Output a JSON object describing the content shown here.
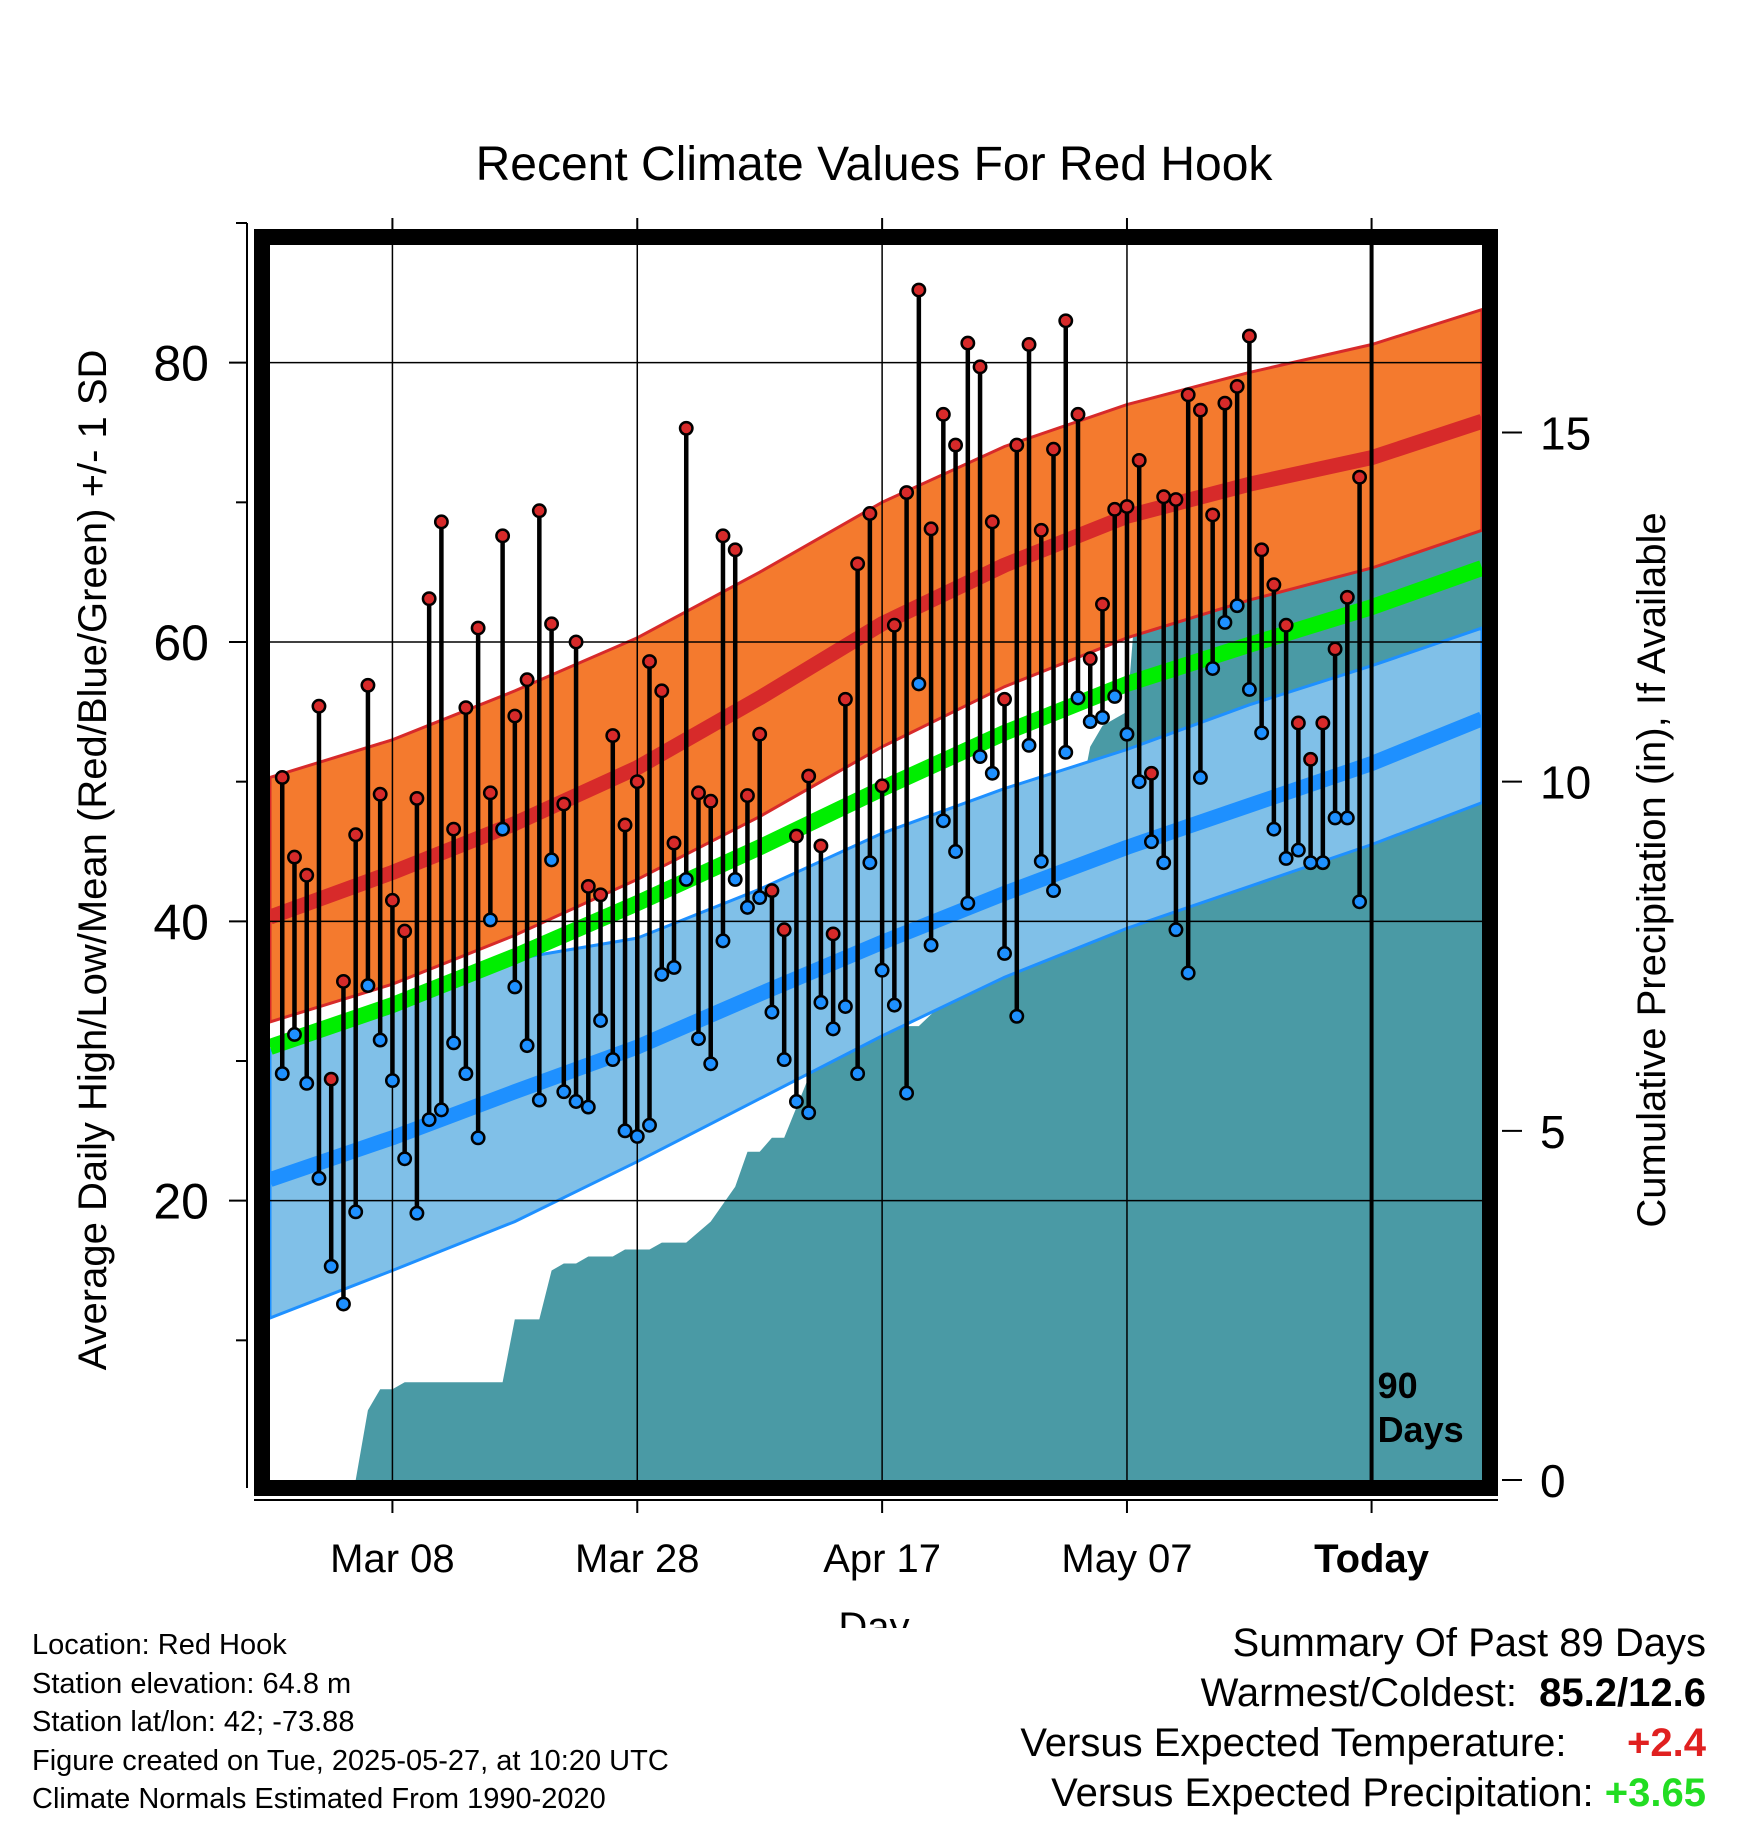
{
  "chart_data": {
    "type": "line",
    "title": "Recent Climate Values For Red Hook",
    "xlabel": "Day",
    "ylabel": "Average Daily High/Low/Mean (Red/Blue/Green) +/- 1 SD",
    "y2label": "Cumulative Precipitation (in), If Available",
    "ylim": [
      0,
      90
    ],
    "y2lim": [
      0,
      18
    ],
    "yticks": [
      "20",
      "40",
      "60",
      "80"
    ],
    "y2ticks": [
      "0",
      "5",
      "10",
      "15"
    ],
    "x_start": "Feb 26",
    "x_end": "Jun 5",
    "xticks": [
      "Mar 08",
      "Mar 28",
      "Apr 17",
      "May 07",
      "Today"
    ],
    "today_label": [
      "90",
      "Days"
    ],
    "grid": true,
    "colors": {
      "high_band": "#f47a2e",
      "high_line": "#d72a2a",
      "low_band": "#80c0e8",
      "low_line": "#1e90ff",
      "mean_line": "#00ee00",
      "precip": "#4a9aa5",
      "obs_high_point": "#d72a2a",
      "obs_low_point": "#1e90ff"
    },
    "normal_high": {
      "x": [
        "Feb 26",
        "Mar 8",
        "Mar 18",
        "Mar 28",
        "Apr 7",
        "Apr 17",
        "Apr 27",
        "May 7",
        "May 17",
        "May 27",
        "Jun 5"
      ],
      "mean": [
        40.3,
        43.5,
        47.0,
        51.0,
        56.0,
        61.3,
        65.5,
        69.0,
        71.3,
        73.2,
        75.8
      ],
      "upper": [
        50.3,
        53.0,
        56.5,
        60.3,
        65.0,
        70.0,
        74.0,
        77.0,
        79.3,
        81.3,
        83.8
      ],
      "lower": [
        32.8,
        35.5,
        39.0,
        43.0,
        47.5,
        52.5,
        56.8,
        60.3,
        63.0,
        65.3,
        68.0
      ]
    },
    "normal_mean": {
      "x": [
        "Feb 26",
        "Mar 8",
        "Mar 18",
        "Mar 28",
        "Apr 7",
        "Apr 17",
        "Apr 27",
        "May 7",
        "May 17",
        "May 27",
        "Jun 5"
      ],
      "values": [
        31.0,
        34.0,
        37.5,
        41.3,
        45.3,
        49.5,
        53.5,
        57.0,
        59.8,
        62.5,
        65.3
      ]
    },
    "normal_low": {
      "x": [
        "Feb 26",
        "Mar 8",
        "Mar 18",
        "Mar 28",
        "Apr 7",
        "Apr 17",
        "Apr 27",
        "May 7",
        "May 17",
        "May 27",
        "Jun 5"
      ],
      "mean": [
        21.5,
        24.5,
        27.8,
        31.0,
        34.8,
        38.5,
        42.0,
        45.3,
        48.3,
        51.3,
        54.5
      ],
      "upper": [
        30.8,
        33.5,
        37.3,
        38.8,
        42.3,
        46.3,
        49.5,
        52.3,
        55.5,
        58.3,
        61.0
      ],
      "lower": [
        11.6,
        15.0,
        18.5,
        22.8,
        27.3,
        31.8,
        36.0,
        39.5,
        42.5,
        45.5,
        48.5
      ]
    },
    "observed": {
      "dates": [
        "Feb 27",
        "Feb 28",
        "Mar 1",
        "Mar 2",
        "Mar 3",
        "Mar 4",
        "Mar 5",
        "Mar 6",
        "Mar 7",
        "Mar 8",
        "Mar 9",
        "Mar 10",
        "Mar 11",
        "Mar 12",
        "Mar 13",
        "Mar 14",
        "Mar 15",
        "Mar 16",
        "Mar 17",
        "Mar 18",
        "Mar 19",
        "Mar 20",
        "Mar 21",
        "Mar 22",
        "Mar 23",
        "Mar 24",
        "Mar 25",
        "Mar 26",
        "Mar 27",
        "Mar 28",
        "Mar 29",
        "Mar 30",
        "Mar 31",
        "Apr 1",
        "Apr 2",
        "Apr 3",
        "Apr 4",
        "Apr 5",
        "Apr 6",
        "Apr 7",
        "Apr 8",
        "Apr 9",
        "Apr 10",
        "Apr 11",
        "Apr 12",
        "Apr 13",
        "Apr 14",
        "Apr 15",
        "Apr 16",
        "Apr 17",
        "Apr 18",
        "Apr 19",
        "Apr 20",
        "Apr 21",
        "Apr 22",
        "Apr 23",
        "Apr 24",
        "Apr 25",
        "Apr 26",
        "Apr 27",
        "Apr 28",
        "Apr 29",
        "Apr 30",
        "May 1",
        "May 2",
        "May 3",
        "May 4",
        "May 5",
        "May 6",
        "May 7",
        "May 8",
        "May 9",
        "May 10",
        "May 11",
        "May 12",
        "May 13",
        "May 14",
        "May 15",
        "May 16",
        "May 17",
        "May 18",
        "May 19",
        "May 20",
        "May 21",
        "May 22",
        "May 23",
        "May 24",
        "May 25",
        "May 26"
      ],
      "high": [
        50.3,
        44.6,
        43.3,
        55.4,
        28.7,
        35.7,
        46.2,
        56.9,
        49.1,
        41.5,
        39.3,
        48.8,
        63.1,
        68.6,
        46.6,
        55.3,
        61.0,
        49.2,
        67.6,
        54.7,
        57.3,
        69.4,
        61.3,
        48.4,
        60.0,
        42.5,
        41.9,
        53.3,
        46.9,
        50.0,
        58.6,
        56.5,
        45.6,
        75.3,
        49.2,
        48.6,
        67.6,
        66.6,
        49.0,
        53.4,
        42.2,
        39.4,
        46.1,
        50.4,
        45.4,
        39.1,
        55.9,
        65.6,
        69.2,
        49.7,
        61.2,
        70.7,
        85.2,
        68.1,
        76.3,
        74.1,
        81.4,
        79.7,
        68.6,
        55.9,
        74.1,
        81.3,
        68.0,
        73.8,
        83.0,
        76.3,
        58.8,
        62.7,
        69.5,
        69.7,
        73.0,
        50.6,
        70.4,
        70.2,
        77.7,
        76.6,
        69.1,
        77.1,
        78.3,
        81.9,
        66.6,
        64.1,
        61.2,
        54.2,
        51.6,
        54.2,
        59.5,
        63.2,
        71.8
      ],
      "low": [
        29.1,
        31.9,
        28.4,
        21.6,
        15.3,
        12.6,
        19.2,
        35.4,
        31.5,
        28.6,
        23.0,
        19.1,
        25.8,
        26.5,
        31.3,
        29.1,
        24.5,
        40.1,
        46.6,
        35.3,
        31.1,
        27.2,
        44.4,
        27.8,
        27.1,
        26.7,
        32.9,
        30.1,
        25.0,
        24.6,
        25.4,
        36.2,
        36.7,
        43.0,
        31.6,
        29.8,
        38.6,
        43.0,
        41.0,
        41.7,
        33.5,
        30.1,
        27.1,
        26.3,
        34.2,
        32.3,
        33.9,
        29.1,
        44.2,
        36.5,
        34.0,
        27.7,
        57.0,
        38.3,
        47.2,
        45.0,
        41.3,
        51.8,
        50.6,
        37.7,
        33.2,
        52.6,
        44.3,
        42.2,
        52.1,
        56.0,
        54.3,
        54.6,
        56.1,
        53.4,
        50.0,
        45.7,
        44.2,
        39.4,
        36.3,
        50.3,
        58.1,
        61.4,
        62.6,
        56.6,
        53.5,
        46.6,
        44.5,
        45.1,
        44.2,
        44.2,
        47.4,
        47.4,
        41.4
      ]
    },
    "precip": {
      "x": [
        "Feb 26",
        "Mar 5",
        "Mar 6",
        "Mar 7",
        "Mar 8",
        "Mar 9",
        "Mar 17",
        "Mar 18",
        "Mar 19",
        "Mar 20",
        "Mar 21",
        "Mar 22",
        "Mar 23",
        "Mar 24",
        "Mar 25",
        "Mar 26",
        "Mar 27",
        "Mar 28",
        "Mar 29",
        "Mar 30",
        "Apr 1",
        "Apr 3",
        "Apr 5",
        "Apr 6",
        "Apr 7",
        "Apr 8",
        "Apr 9",
        "Apr 12",
        "Apr 13",
        "Apr 19",
        "Apr 20",
        "Apr 26",
        "Apr 27",
        "May 1",
        "May 2",
        "May 3",
        "May 4",
        "May 5",
        "May 6",
        "May 7",
        "May 8",
        "May 9",
        "May 10",
        "May 13",
        "May 14",
        "May 20",
        "May 21",
        "May 23",
        "Jun 5"
      ],
      "values": [
        0,
        0,
        1.0,
        1.3,
        1.3,
        1.4,
        1.4,
        2.3,
        2.3,
        2.3,
        3.0,
        3.1,
        3.1,
        3.2,
        3.2,
        3.2,
        3.3,
        3.3,
        3.3,
        3.4,
        3.4,
        3.7,
        4.2,
        4.7,
        4.7,
        4.9,
        4.9,
        6.2,
        6.3,
        6.5,
        6.5,
        7.5,
        7.6,
        7.7,
        8.9,
        9.6,
        10.5,
        10.8,
        10.9,
        11.0,
        13.2,
        13.2,
        13.2,
        13.3,
        13.3,
        13.3,
        13.6,
        13.8,
        13.8
      ]
    }
  },
  "footer": {
    "location": "Location: Red Hook",
    "elevation": "Station elevation: 64.8 m",
    "latlon": "Station lat/lon: 42; -73.88",
    "created": "Figure created on Tue, 2025-05-27, at 10:20 UTC",
    "normals": "Climate Normals Estimated From 1990-2020"
  },
  "summary": {
    "title": "Summary Of Past 89 Days",
    "warmest_label": "Warmest/Coldest:",
    "warmest_value": "85.2/12.6",
    "temp_label": "Versus Expected Temperature:",
    "temp_value": "+2.4",
    "temp_color": "#e02020",
    "precip_label": "Versus Expected Precipitation:",
    "precip_value": "+3.65",
    "precip_color": "#22dd22"
  }
}
